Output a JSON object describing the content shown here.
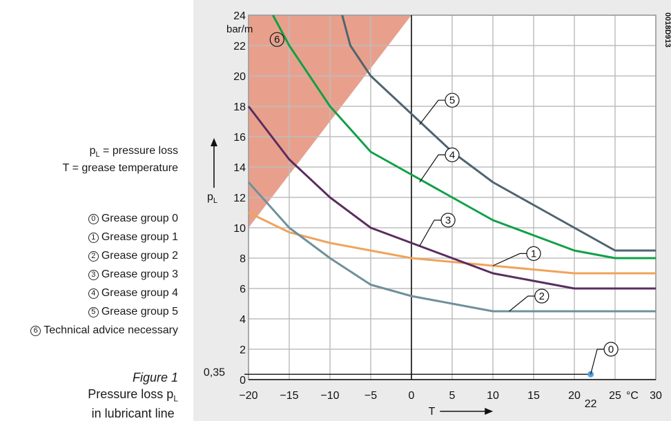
{
  "definitions": [
    {
      "symbol": "p",
      "sub": "L",
      "text": " = pressure loss"
    },
    {
      "symbol": "T",
      "sub": "",
      "text": " = grease temperature"
    }
  ],
  "legend": [
    {
      "num": "0",
      "label": "Grease group 0"
    },
    {
      "num": "1",
      "label": "Grease group 1"
    },
    {
      "num": "2",
      "label": "Grease group 2"
    },
    {
      "num": "3",
      "label": "Grease group 3"
    },
    {
      "num": "4",
      "label": "Grease group 4"
    },
    {
      "num": "5",
      "label": "Grease group 5"
    },
    {
      "num": "6",
      "label": "Technical advice necessary"
    }
  ],
  "figure": {
    "number": "Figure 1",
    "caption_line1": "Pressure loss p",
    "caption_sub": "L",
    "caption_line2": "in lubricant line"
  },
  "doc_id": "0018D913",
  "colors": {
    "frame_bg": "#ebebeb",
    "grid": "#bdbdbd",
    "region6": "#e8a08c",
    "group1": "#f0a35a",
    "group2": "#6f909c",
    "group3": "#5a2d5e",
    "group4": "#0fa048",
    "group5": "#4e6470",
    "group0": "#5aa0d8"
  },
  "chart_data": {
    "type": "line",
    "xlabel": "T",
    "ylabel": "p",
    "ylabel_sub": "L",
    "x_unit": "°C",
    "y_unit": "bar/m",
    "xlim": [
      -20,
      30
    ],
    "ylim": [
      0,
      24
    ],
    "x_ticks": [
      -20,
      -15,
      -10,
      -5,
      0,
      5,
      10,
      15,
      20,
      25,
      30
    ],
    "x_tick_labels": [
      "−20",
      "−15",
      "−10",
      "−5",
      "0",
      "5",
      "10",
      "15",
      "20",
      "25",
      "30"
    ],
    "y_ticks": [
      0,
      2,
      4,
      6,
      8,
      10,
      12,
      14,
      16,
      18,
      20,
      22,
      24
    ],
    "y_tick_labels": [
      "0",
      "2",
      "4",
      "6",
      "8",
      "10",
      "12",
      "14",
      "16",
      "18",
      "20",
      "22",
      "24"
    ],
    "special_x_tick": {
      "value": 22,
      "label": "22"
    },
    "special_y_tick": {
      "value": 0.35,
      "label": "0,35"
    },
    "grid": true,
    "region_6": {
      "label": "6",
      "polygon": [
        [
          -20,
          24
        ],
        [
          0,
          24
        ],
        [
          -20,
          10
        ]
      ],
      "label_at": [
        -16.5,
        22.4
      ]
    },
    "series": [
      {
        "id": "1",
        "color_key": "group1",
        "x": [
          -20,
          -15,
          -10,
          -5,
          0,
          5,
          10,
          15,
          20,
          25,
          30
        ],
        "y": [
          11,
          9.7,
          9,
          8.5,
          8,
          7.75,
          7.5,
          7.25,
          7,
          7,
          7
        ],
        "callout_at": [
          10,
          7.5
        ],
        "label_at": [
          15,
          8.3
        ]
      },
      {
        "id": "2",
        "color_key": "group2",
        "x": [
          -20,
          -15,
          -10,
          -5,
          0,
          5,
          10,
          15,
          20,
          25,
          30
        ],
        "y": [
          13,
          10,
          8,
          6.25,
          5.5,
          5,
          4.5,
          4.5,
          4.5,
          4.5,
          4.5
        ],
        "callout_at": [
          12,
          4.5
        ],
        "label_at": [
          16,
          5.5
        ]
      },
      {
        "id": "3",
        "color_key": "group3",
        "x": [
          -20,
          -15,
          -10,
          -5,
          0,
          5,
          10,
          15,
          20,
          25,
          30
        ],
        "y": [
          18,
          14.5,
          12,
          10,
          9,
          8,
          7,
          6.5,
          6,
          6,
          6
        ],
        "callout_at": [
          1,
          8.8
        ],
        "label_at": [
          4.5,
          10.5
        ]
      },
      {
        "id": "4",
        "color_key": "group4",
        "x": [
          -17,
          -15,
          -10,
          -5,
          0,
          5,
          10,
          15,
          20,
          25,
          30
        ],
        "y": [
          24,
          22,
          18,
          15,
          13.5,
          12,
          10.5,
          9.5,
          8.5,
          8,
          8
        ],
        "callout_at": [
          1,
          13
        ],
        "label_at": [
          5,
          14.8
        ]
      },
      {
        "id": "5",
        "color_key": "group5",
        "x": [
          -8.5,
          -7.5,
          -5,
          0,
          5,
          10,
          15,
          20,
          25,
          30
        ],
        "y": [
          24,
          22,
          20,
          17.5,
          15,
          13,
          11.5,
          10,
          8.5,
          8.5
        ],
        "callout_at": [
          1,
          16.8
        ],
        "label_at": [
          5,
          18.4
        ]
      }
    ],
    "marker_0": {
      "label": "0",
      "x": 22,
      "y": 0.35,
      "label_at": [
        24.5,
        2
      ]
    }
  }
}
